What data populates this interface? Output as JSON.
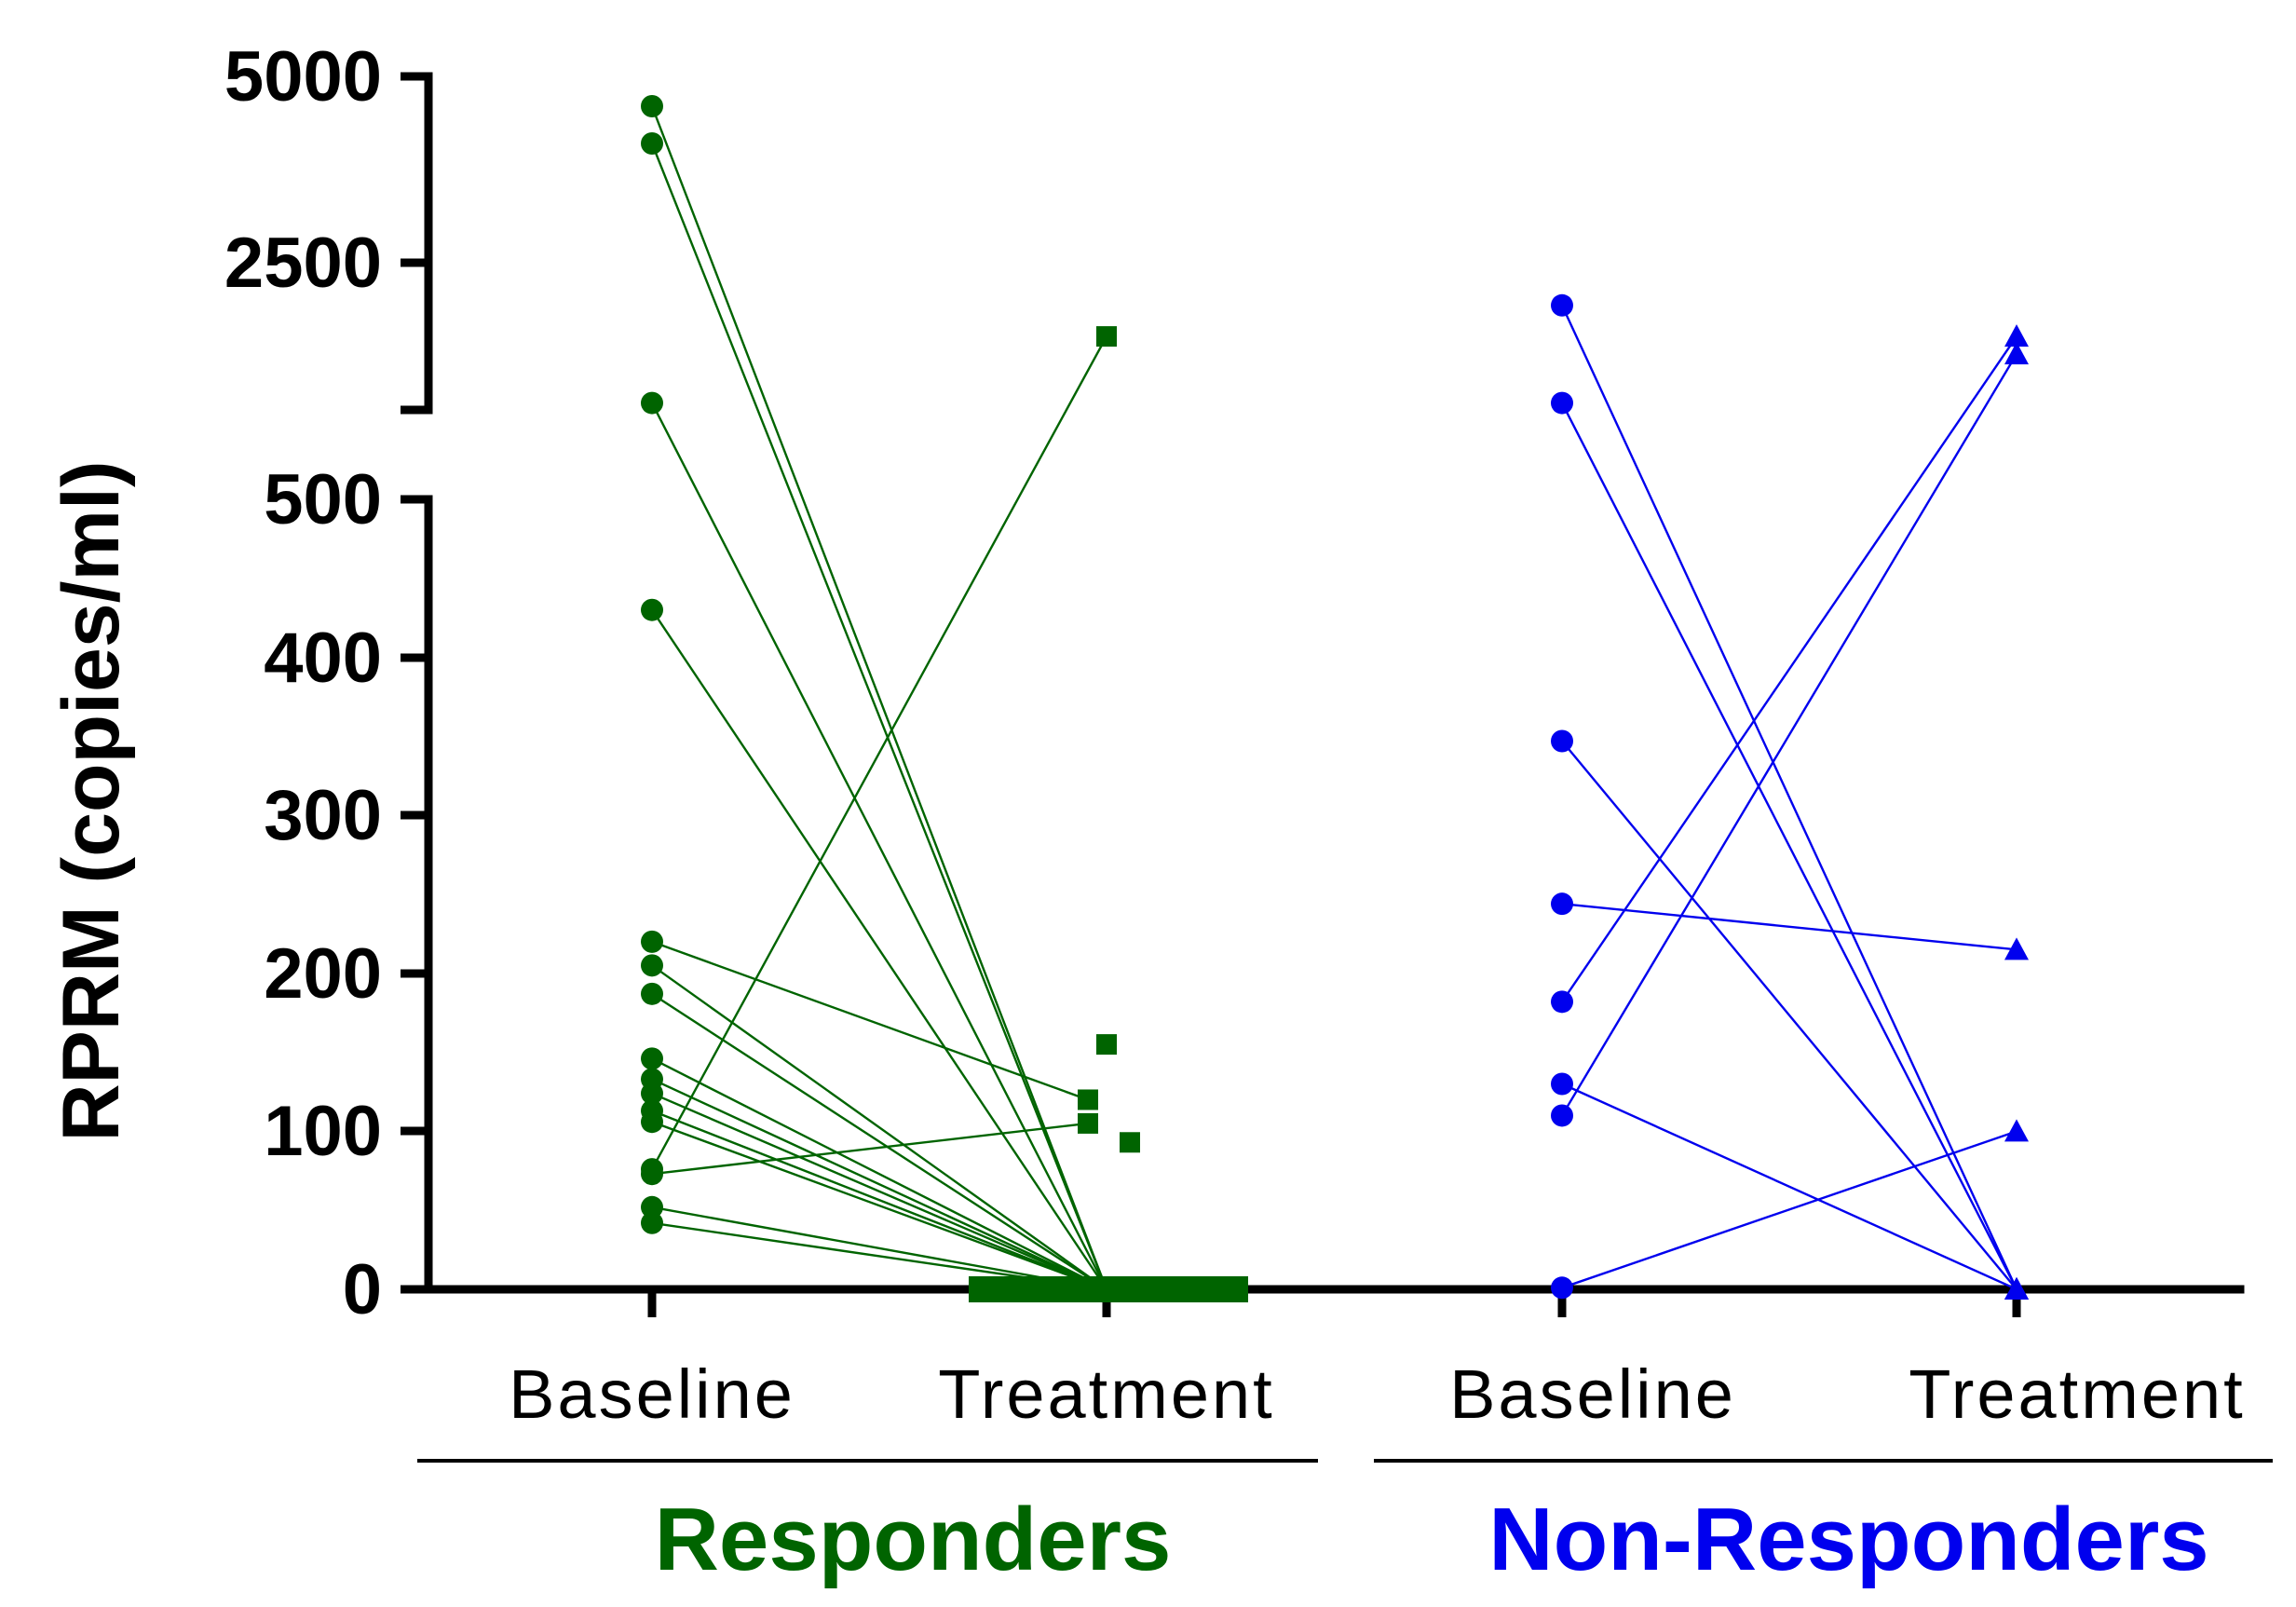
{
  "chart_data": {
    "type": "scatter",
    "ylabel": "RPRM (copies/ml)",
    "y_axis": {
      "segments": [
        {
          "range": [
            0,
            500
          ],
          "ticks": [
            0,
            100,
            200,
            300,
            400,
            500
          ],
          "scale": "linear"
        },
        {
          "range": [
            1000,
            5000
          ],
          "ticks": [
            2500,
            5000
          ],
          "scale": "compressed"
        }
      ],
      "tick_labels": [
        "0",
        "100",
        "200",
        "300",
        "400",
        "500",
        "2500",
        "5000"
      ]
    },
    "categories": [
      "Baseline",
      "Treatment",
      "Baseline",
      "Treatment"
    ],
    "groups": [
      {
        "name": "Responders",
        "color": "#006400",
        "baseline_marker": "circle",
        "treatment_marker": "square",
        "pairs": [
          {
            "baseline": 4600,
            "treatment": 0
          },
          {
            "baseline": 4100,
            "treatment": 0
          },
          {
            "baseline": 1200,
            "treatment": 0
          },
          {
            "baseline": 430,
            "treatment": 0
          },
          {
            "baseline": 220,
            "treatment": 120
          },
          {
            "baseline": 205,
            "treatment": 0
          },
          {
            "baseline": 187,
            "treatment": 0
          },
          {
            "baseline": 146,
            "treatment": 0
          },
          {
            "baseline": 133,
            "treatment": 0
          },
          {
            "baseline": 124,
            "treatment": 0
          },
          {
            "baseline": 113,
            "treatment": 0
          },
          {
            "baseline": 106,
            "treatment": 0
          },
          {
            "baseline": 76,
            "treatment": 1700
          },
          {
            "baseline": 73,
            "treatment": 105
          },
          {
            "baseline": 52,
            "treatment": 0
          },
          {
            "baseline": 42,
            "treatment": 0
          }
        ],
        "unpaired_treatment": [
          155,
          93
        ]
      },
      {
        "name": "Non-Responders",
        "color": "#0000ee",
        "baseline_marker": "circle",
        "treatment_marker": "triangle",
        "pairs": [
          {
            "baseline": 2000,
            "treatment": 0
          },
          {
            "baseline": 1200,
            "treatment": 0
          },
          {
            "baseline": 347,
            "treatment": 0
          },
          {
            "baseline": 244,
            "treatment": 215
          },
          {
            "baseline": 182,
            "treatment": 1700
          },
          {
            "baseline": 130,
            "treatment": 0
          },
          {
            "baseline": 110,
            "treatment": 1550
          },
          {
            "baseline": 1,
            "treatment": 100
          }
        ],
        "unpaired_treatment": []
      }
    ]
  }
}
